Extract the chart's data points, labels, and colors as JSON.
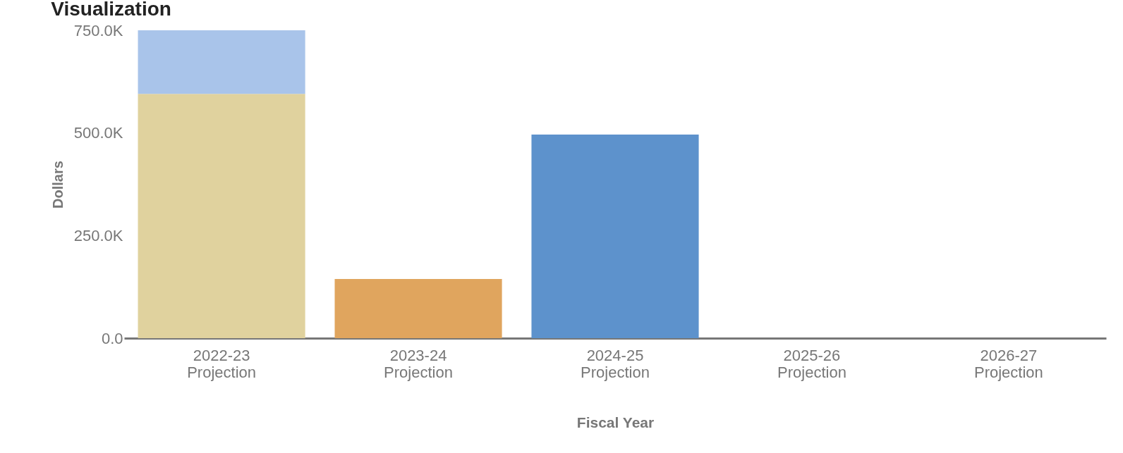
{
  "chart_data": {
    "type": "bar",
    "title": "Visualization",
    "xlabel": "Fiscal Year",
    "ylabel": "Dollars",
    "categories": [
      "2022-23\nProjection",
      "2023-24\nProjection",
      "2024-25\nProjection",
      "2025-26\nProjection",
      "2026-27\nProjection"
    ],
    "stacked": true,
    "series": [
      {
        "color": "#e0d29e",
        "values": [
          595000,
          null,
          null,
          null,
          null
        ]
      },
      {
        "color": "#a9c4ea",
        "values": [
          155000,
          null,
          null,
          null,
          null
        ]
      },
      {
        "color": "#e0a55e",
        "values": [
          null,
          144000,
          null,
          null,
          null
        ]
      },
      {
        "color": "#5d92cc",
        "values": [
          null,
          null,
          496000,
          null,
          null
        ]
      }
    ],
    "ylim": [
      0,
      750000
    ],
    "yticks": [
      {
        "value": 0,
        "label": "0.0"
      },
      {
        "value": 250000,
        "label": "250.0K"
      },
      {
        "value": 500000,
        "label": "500.0K"
      },
      {
        "value": 750000,
        "label": "750.0K"
      }
    ],
    "grid": false
  }
}
